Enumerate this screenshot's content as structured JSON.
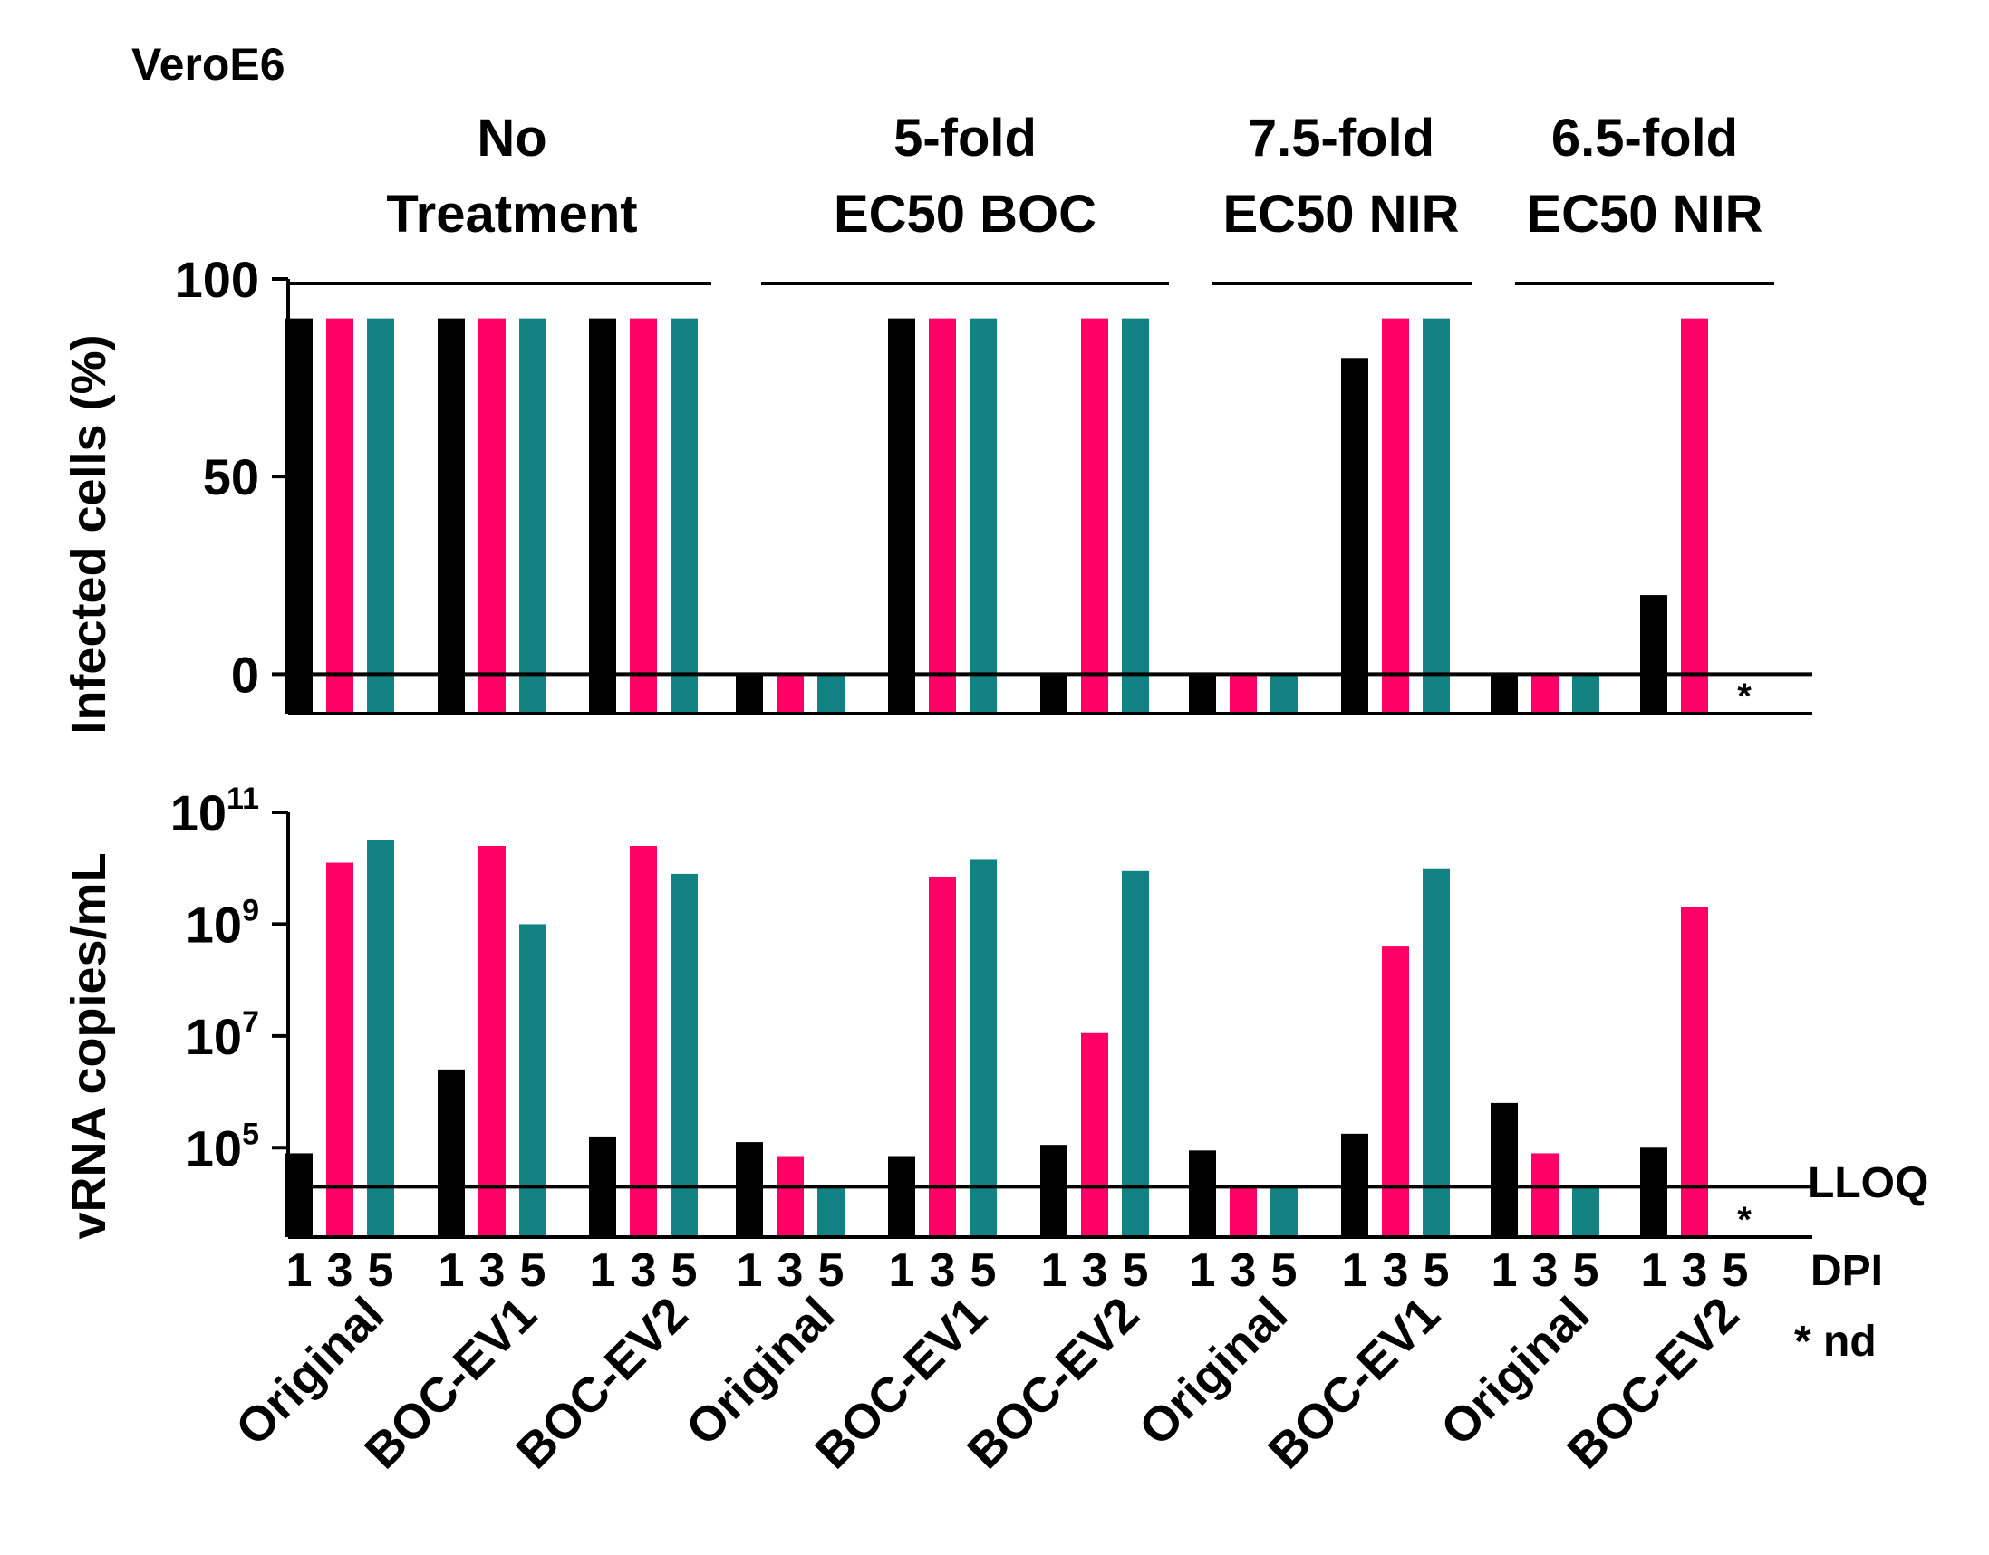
{
  "chart_data": {
    "type": "bar",
    "title": "VeroE6",
    "colors": {
      "dpi_1": "#000000",
      "dpi_3": "#ff0066",
      "dpi_5": "#138282"
    },
    "dpi_label": "DPI",
    "dpi_ticks": [
      "1",
      "3",
      "5"
    ],
    "nd_star": "*",
    "nd_note": "* nd",
    "lloq_label": "LLOQ",
    "lloq_value": 20000,
    "groups": [
      {
        "label_lines": [
          "No",
          "Treatment"
        ],
        "categories": [
          "Original",
          "BOC-EV1",
          "BOC-EV2"
        ]
      },
      {
        "label_lines": [
          "5-fold",
          "EC50 BOC"
        ],
        "categories": [
          "Original",
          "BOC-EV1",
          "BOC-EV2"
        ]
      },
      {
        "label_lines": [
          "7.5-fold",
          "EC50 NIR"
        ],
        "categories": [
          "Original",
          "BOC-EV1"
        ]
      },
      {
        "label_lines": [
          "6.5-fold",
          "EC50 NIR"
        ],
        "categories": [
          "Original",
          "BOC-EV2"
        ]
      }
    ],
    "panels": [
      {
        "name": "infected-cells",
        "ylabel": "Infected cells (%)",
        "scale": "linear",
        "ylim": [
          -10,
          100
        ],
        "yticks": [
          {
            "label": "100",
            "value": 100
          },
          {
            "label": "50",
            "value": 50
          },
          {
            "label": "0",
            "value": 0
          }
        ],
        "values": [
          [
            90,
            90,
            90
          ],
          [
            90,
            90,
            90
          ],
          [
            90,
            90,
            90
          ],
          [
            0,
            0,
            0
          ],
          [
            90,
            90,
            90
          ],
          [
            0,
            90,
            90
          ],
          [
            0,
            0,
            0
          ],
          [
            80,
            90,
            90
          ],
          [
            0,
            0,
            0
          ],
          [
            20,
            90,
            null
          ]
        ]
      },
      {
        "name": "vrna",
        "ylabel": "vRNA copies/mL",
        "scale": "log",
        "ylim_log10": [
          3.4,
          11
        ],
        "yticks": [
          {
            "base": "10",
            "exp": "11",
            "value": 11
          },
          {
            "base": "10",
            "exp": "9",
            "value": 9
          },
          {
            "base": "10",
            "exp": "7",
            "value": 7
          },
          {
            "base": "10",
            "exp": "5",
            "value": 5
          }
        ],
        "values_log10": [
          [
            4.9,
            10.1,
            10.5
          ],
          [
            6.4,
            10.4,
            9.0
          ],
          [
            5.2,
            10.4,
            9.9
          ],
          [
            5.1,
            4.85,
            4.3
          ],
          [
            4.85,
            9.85,
            10.15
          ],
          [
            5.05,
            7.05,
            9.95
          ],
          [
            4.95,
            4.3,
            4.3
          ],
          [
            5.25,
            8.6,
            10.0
          ],
          [
            5.8,
            4.9,
            4.3
          ],
          [
            5.0,
            9.3,
            null
          ]
        ]
      }
    ]
  }
}
